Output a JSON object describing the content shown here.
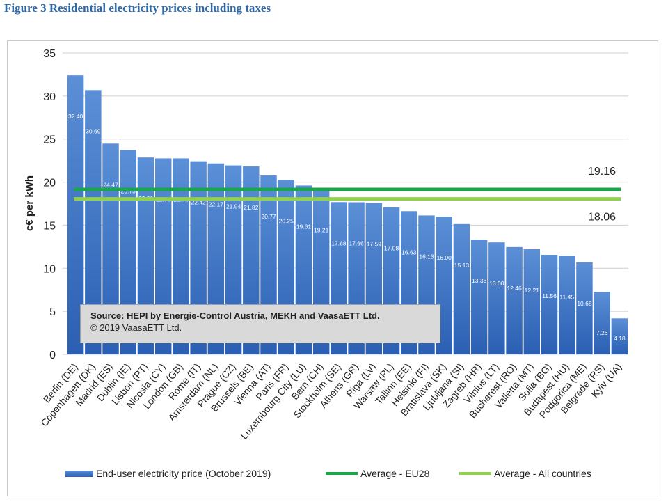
{
  "figure_title": "Figure 3 Residential electricity prices including taxes",
  "source_note": "Source: HEPI by Energie-Control Austria, MEKH and VaasaETT Ltd.",
  "copyright_note": "© 2019 VaasaETT Ltd.",
  "colors": {
    "bar_top": "#5b8fd6",
    "bar_bottom": "#2a5fb3",
    "eu28_line": "#1aa64b",
    "all_countries_line": "#92d050",
    "title": "#2e6aaa"
  },
  "chart_data": {
    "type": "bar",
    "ylabel": "c€ per kWh",
    "ylim": [
      0,
      35
    ],
    "yticks": [
      0,
      5,
      10,
      15,
      20,
      25,
      30,
      35
    ],
    "grid": true,
    "legend_placement": "bottom",
    "categories": [
      "Berlin (DE)",
      "Copenhagen (DK)",
      "Madrid (ES)",
      "Dublin (IE)",
      "Lisbon (PT)",
      "Nicosia (CY)",
      "London (GB)",
      "Rome (IT)",
      "Amsterdam (NL)",
      "Prague (CZ)",
      "Brussels (BE)",
      "Vienna (AT)",
      "Paris (FR)",
      "Luxembourg City (LU)",
      "Bern (CH)",
      "Stockholm (SE)",
      "Athens (GR)",
      "Riga (LV)",
      "Warsaw (PL)",
      "Tallinn (EE)",
      "Helsinki (FI)",
      "Bratislava (SK)",
      "Ljubljana (SI)",
      "Zagreb (HR)",
      "Vilnius (LT)",
      "Bucharest (RO)",
      "Valletta (MT)",
      "Sofia (BG)",
      "Budapest (HU)",
      "Podgorica (ME)",
      "Belgrade (RS)",
      "Kyiv (UA)"
    ],
    "series": [
      {
        "name": "End-user electricity price (October 2019)",
        "values": [
          32.4,
          30.69,
          24.47,
          23.73,
          22.86,
          22.76,
          22.76,
          22.42,
          22.17,
          21.94,
          21.82,
          20.77,
          20.25,
          19.61,
          19.21,
          17.68,
          17.66,
          17.59,
          17.08,
          16.63,
          16.13,
          16.0,
          15.13,
          13.33,
          13.0,
          12.46,
          12.21,
          11.56,
          11.45,
          10.68,
          7.26,
          4.18
        ],
        "value_labels": [
          "32.40",
          "30.69",
          "24.47",
          "23.73",
          "22.86",
          "22.76",
          "22.76",
          "22.42",
          "22.17",
          "21.94",
          "21.82",
          "20.77",
          "20.25",
          "19.61",
          "19.21",
          "17.68",
          "17.66",
          "17.59",
          "17.08",
          "16.63",
          "16.13",
          "16.00",
          "15.13",
          "13.33",
          "13.00",
          "12.46",
          "12.21",
          "11.56",
          "11.45",
          "10.68",
          "7.26",
          "4.18"
        ]
      }
    ],
    "reference_lines": [
      {
        "name": "Average - EU28",
        "value": 19.16,
        "label": "19.16"
      },
      {
        "name": "Average - All countries",
        "value": 18.06,
        "label": "18.06"
      }
    ]
  }
}
